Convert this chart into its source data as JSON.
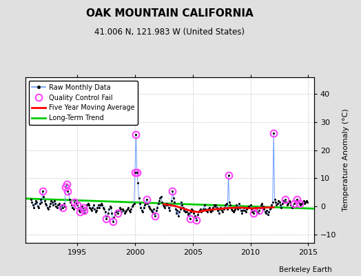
{
  "title": "OAK MOUNTAIN CALIFORNIA",
  "subtitle": "41.006 N, 121.983 W (United States)",
  "ylabel": "Temperature Anomaly (°C)",
  "watermark": "Berkeley Earth",
  "xlim": [
    1990.5,
    2015.5
  ],
  "ylim": [
    -13,
    46
  ],
  "yticks": [
    -10,
    0,
    10,
    20,
    30,
    40
  ],
  "xticks": [
    1995,
    2000,
    2005,
    2010,
    2015
  ],
  "bg_color": "#e0e0e0",
  "plot_bg_color": "#ffffff",
  "raw_color": "#6699ff",
  "dot_color": "#000000",
  "qc_color": "#ff44ff",
  "moving_avg_color": "#ff0000",
  "trend_color": "#00cc00",
  "raw_data": [
    [
      1991.0,
      2.5
    ],
    [
      1991.083,
      1.5
    ],
    [
      1991.167,
      0.5
    ],
    [
      1991.25,
      -0.5
    ],
    [
      1991.333,
      1.0
    ],
    [
      1991.417,
      2.0
    ],
    [
      1991.5,
      1.5
    ],
    [
      1991.583,
      0.0
    ],
    [
      1991.667,
      -0.5
    ],
    [
      1991.75,
      1.0
    ],
    [
      1991.833,
      2.5
    ],
    [
      1991.917,
      1.5
    ],
    [
      1992.0,
      5.5
    ],
    [
      1992.083,
      3.5
    ],
    [
      1992.167,
      2.0
    ],
    [
      1992.25,
      1.0
    ],
    [
      1992.333,
      0.5
    ],
    [
      1992.417,
      -0.5
    ],
    [
      1992.5,
      -1.0
    ],
    [
      1992.583,
      0.0
    ],
    [
      1992.667,
      1.0
    ],
    [
      1992.75,
      2.0
    ],
    [
      1992.833,
      1.5
    ],
    [
      1992.917,
      0.5
    ],
    [
      1993.0,
      2.0
    ],
    [
      1993.083,
      1.0
    ],
    [
      1993.167,
      0.0
    ],
    [
      1993.25,
      -0.5
    ],
    [
      1993.333,
      0.5
    ],
    [
      1993.417,
      1.0
    ],
    [
      1993.5,
      0.0
    ],
    [
      1993.583,
      -1.0
    ],
    [
      1993.667,
      0.5
    ],
    [
      1993.75,
      -0.5
    ],
    [
      1993.833,
      1.0
    ],
    [
      1993.917,
      0.0
    ],
    [
      1994.0,
      7.0
    ],
    [
      1994.083,
      8.0
    ],
    [
      1994.167,
      5.5
    ],
    [
      1994.25,
      4.5
    ],
    [
      1994.333,
      2.5
    ],
    [
      1994.417,
      1.5
    ],
    [
      1994.5,
      0.5
    ],
    [
      1994.583,
      -0.5
    ],
    [
      1994.667,
      -1.0
    ],
    [
      1994.75,
      1.5
    ],
    [
      1994.833,
      2.5
    ],
    [
      1994.917,
      1.0
    ],
    [
      1995.0,
      0.5
    ],
    [
      1995.083,
      -0.5
    ],
    [
      1995.167,
      -1.5
    ],
    [
      1995.25,
      -2.0
    ],
    [
      1995.333,
      -1.0
    ],
    [
      1995.417,
      0.0
    ],
    [
      1995.5,
      -0.5
    ],
    [
      1995.583,
      -1.5
    ],
    [
      1995.667,
      -2.5
    ],
    [
      1995.75,
      -1.0
    ],
    [
      1995.833,
      0.5
    ],
    [
      1995.917,
      1.0
    ],
    [
      1996.0,
      0.5
    ],
    [
      1996.083,
      -0.5
    ],
    [
      1996.167,
      -1.0
    ],
    [
      1996.25,
      -1.5
    ],
    [
      1996.333,
      -0.5
    ],
    [
      1996.417,
      0.5
    ],
    [
      1996.5,
      -1.0
    ],
    [
      1996.583,
      -2.0
    ],
    [
      1996.667,
      -1.5
    ],
    [
      1996.75,
      -0.5
    ],
    [
      1996.833,
      0.5
    ],
    [
      1996.917,
      -0.5
    ],
    [
      1997.0,
      0.5
    ],
    [
      1997.083,
      1.0
    ],
    [
      1997.167,
      0.5
    ],
    [
      1997.25,
      -0.5
    ],
    [
      1997.333,
      -1.0
    ],
    [
      1997.417,
      -2.0
    ],
    [
      1997.5,
      -4.5
    ],
    [
      1997.583,
      -3.5
    ],
    [
      1997.667,
      -2.5
    ],
    [
      1997.75,
      -1.0
    ],
    [
      1997.833,
      0.0
    ],
    [
      1997.917,
      -0.5
    ],
    [
      1998.0,
      -2.5
    ],
    [
      1998.083,
      -5.5
    ],
    [
      1998.167,
      -4.0
    ],
    [
      1998.25,
      -3.0
    ],
    [
      1998.333,
      -2.0
    ],
    [
      1998.417,
      -1.5
    ],
    [
      1998.5,
      -2.5
    ],
    [
      1998.583,
      -1.5
    ],
    [
      1998.667,
      -0.5
    ],
    [
      1998.75,
      -1.0
    ],
    [
      1998.833,
      -2.0
    ],
    [
      1998.917,
      -1.0
    ],
    [
      1999.0,
      -1.5
    ],
    [
      1999.083,
      -2.5
    ],
    [
      1999.167,
      -2.0
    ],
    [
      1999.25,
      -1.5
    ],
    [
      1999.333,
      -1.0
    ],
    [
      1999.417,
      -0.5
    ],
    [
      1999.5,
      -1.5
    ],
    [
      1999.583,
      -2.0
    ],
    [
      1999.667,
      -1.0
    ],
    [
      1999.75,
      0.0
    ],
    [
      1999.833,
      0.5
    ],
    [
      1999.917,
      1.0
    ],
    [
      2000.0,
      12.0
    ],
    [
      2000.083,
      25.5
    ],
    [
      2000.167,
      12.0
    ],
    [
      2000.25,
      8.5
    ],
    [
      2000.333,
      3.0
    ],
    [
      2000.417,
      1.0
    ],
    [
      2000.5,
      -0.5
    ],
    [
      2000.583,
      -1.5
    ],
    [
      2000.667,
      -2.0
    ],
    [
      2000.75,
      -0.5
    ],
    [
      2000.833,
      0.5
    ],
    [
      2000.917,
      1.0
    ],
    [
      2001.0,
      2.5
    ],
    [
      2001.083,
      1.0
    ],
    [
      2001.167,
      0.0
    ],
    [
      2001.25,
      -0.5
    ],
    [
      2001.333,
      -1.0
    ],
    [
      2001.417,
      -1.5
    ],
    [
      2001.5,
      -2.0
    ],
    [
      2001.583,
      -1.0
    ],
    [
      2001.667,
      -2.5
    ],
    [
      2001.75,
      -3.5
    ],
    [
      2001.833,
      -1.5
    ],
    [
      2001.917,
      -0.5
    ],
    [
      2002.0,
      1.0
    ],
    [
      2002.083,
      2.0
    ],
    [
      2002.167,
      3.0
    ],
    [
      2002.25,
      3.5
    ],
    [
      2002.333,
      1.5
    ],
    [
      2002.417,
      0.5
    ],
    [
      2002.5,
      0.0
    ],
    [
      2002.583,
      -0.5
    ],
    [
      2002.667,
      0.5
    ],
    [
      2002.75,
      1.0
    ],
    [
      2002.833,
      0.5
    ],
    [
      2002.917,
      -0.5
    ],
    [
      2003.0,
      -1.5
    ],
    [
      2003.083,
      0.5
    ],
    [
      2003.167,
      2.0
    ],
    [
      2003.25,
      5.5
    ],
    [
      2003.333,
      3.0
    ],
    [
      2003.417,
      1.5
    ],
    [
      2003.5,
      -1.0
    ],
    [
      2003.583,
      -2.5
    ],
    [
      2003.667,
      -1.5
    ],
    [
      2003.75,
      -3.5
    ],
    [
      2003.833,
      -2.0
    ],
    [
      2003.917,
      -1.0
    ],
    [
      2004.0,
      1.5
    ],
    [
      2004.083,
      0.5
    ],
    [
      2004.167,
      -0.5
    ],
    [
      2004.25,
      -1.5
    ],
    [
      2004.333,
      -2.0
    ],
    [
      2004.417,
      -1.0
    ],
    [
      2004.5,
      -2.0
    ],
    [
      2004.583,
      -3.0
    ],
    [
      2004.667,
      -2.5
    ],
    [
      2004.75,
      -4.5
    ],
    [
      2004.833,
      -2.0
    ],
    [
      2004.917,
      -1.0
    ],
    [
      2005.0,
      -1.5
    ],
    [
      2005.083,
      -2.5
    ],
    [
      2005.167,
      -3.5
    ],
    [
      2005.25,
      -4.0
    ],
    [
      2005.333,
      -5.0
    ],
    [
      2005.417,
      -3.0
    ],
    [
      2005.5,
      -2.0
    ],
    [
      2005.583,
      -1.5
    ],
    [
      2005.667,
      -1.0
    ],
    [
      2005.75,
      -2.0
    ],
    [
      2005.833,
      -1.5
    ],
    [
      2005.917,
      -1.0
    ],
    [
      2006.0,
      0.5
    ],
    [
      2006.083,
      -1.0
    ],
    [
      2006.167,
      -1.5
    ],
    [
      2006.25,
      -2.0
    ],
    [
      2006.333,
      -1.0
    ],
    [
      2006.417,
      -0.5
    ],
    [
      2006.5,
      -1.5
    ],
    [
      2006.583,
      -2.0
    ],
    [
      2006.667,
      -1.5
    ],
    [
      2006.75,
      -0.5
    ],
    [
      2006.833,
      0.5
    ],
    [
      2006.917,
      0.0
    ],
    [
      2007.0,
      0.5
    ],
    [
      2007.083,
      -0.5
    ],
    [
      2007.167,
      -1.5
    ],
    [
      2007.25,
      -2.5
    ],
    [
      2007.333,
      -1.0
    ],
    [
      2007.417,
      -0.5
    ],
    [
      2007.5,
      -1.5
    ],
    [
      2007.583,
      -2.0
    ],
    [
      2007.667,
      -1.0
    ],
    [
      2007.75,
      -0.5
    ],
    [
      2007.833,
      0.5
    ],
    [
      2007.917,
      1.0
    ],
    [
      2008.0,
      -1.0
    ],
    [
      2008.083,
      11.0
    ],
    [
      2008.167,
      1.5
    ],
    [
      2008.25,
      0.5
    ],
    [
      2008.333,
      -1.0
    ],
    [
      2008.417,
      -1.5
    ],
    [
      2008.5,
      -2.0
    ],
    [
      2008.583,
      -1.5
    ],
    [
      2008.667,
      -1.0
    ],
    [
      2008.75,
      0.5
    ],
    [
      2008.833,
      -0.5
    ],
    [
      2008.917,
      -1.0
    ],
    [
      2009.0,
      1.0
    ],
    [
      2009.083,
      -0.5
    ],
    [
      2009.167,
      -1.5
    ],
    [
      2009.25,
      -2.5
    ],
    [
      2009.333,
      -1.5
    ],
    [
      2009.417,
      -0.5
    ],
    [
      2009.5,
      -1.5
    ],
    [
      2009.583,
      -2.0
    ],
    [
      2009.667,
      -1.0
    ],
    [
      2009.75,
      -0.5
    ],
    [
      2009.833,
      0.0
    ],
    [
      2009.917,
      -0.5
    ],
    [
      2010.0,
      0.5
    ],
    [
      2010.083,
      -1.0
    ],
    [
      2010.167,
      -2.0
    ],
    [
      2010.25,
      -2.5
    ],
    [
      2010.333,
      -1.5
    ],
    [
      2010.417,
      -0.5
    ],
    [
      2010.5,
      -1.0
    ],
    [
      2010.583,
      -2.0
    ],
    [
      2010.667,
      -2.5
    ],
    [
      2010.75,
      -1.5
    ],
    [
      2010.833,
      -0.5
    ],
    [
      2010.917,
      0.5
    ],
    [
      2011.0,
      1.0
    ],
    [
      2011.083,
      0.0
    ],
    [
      2011.167,
      -1.0
    ],
    [
      2011.25,
      -2.0
    ],
    [
      2011.333,
      -2.5
    ],
    [
      2011.417,
      -1.5
    ],
    [
      2011.5,
      -3.0
    ],
    [
      2011.583,
      -2.0
    ],
    [
      2011.667,
      -1.0
    ],
    [
      2011.75,
      -0.5
    ],
    [
      2011.833,
      0.5
    ],
    [
      2011.917,
      1.5
    ],
    [
      2012.0,
      26.0
    ],
    [
      2012.083,
      2.5
    ],
    [
      2012.167,
      1.5
    ],
    [
      2012.25,
      0.5
    ],
    [
      2012.333,
      1.0
    ],
    [
      2012.417,
      2.0
    ],
    [
      2012.5,
      1.5
    ],
    [
      2012.583,
      0.5
    ],
    [
      2012.667,
      -0.5
    ],
    [
      2012.75,
      1.0
    ],
    [
      2012.833,
      2.0
    ],
    [
      2012.917,
      1.5
    ],
    [
      2013.0,
      2.5
    ],
    [
      2013.083,
      1.5
    ],
    [
      2013.167,
      0.5
    ],
    [
      2013.25,
      1.0
    ],
    [
      2013.333,
      2.0
    ],
    [
      2013.417,
      1.5
    ],
    [
      2013.5,
      0.5
    ],
    [
      2013.583,
      -0.5
    ],
    [
      2013.667,
      0.0
    ],
    [
      2013.75,
      1.0
    ],
    [
      2013.833,
      2.0
    ],
    [
      2013.917,
      1.5
    ],
    [
      2014.0,
      2.5
    ],
    [
      2014.083,
      2.0
    ],
    [
      2014.167,
      1.5
    ],
    [
      2014.25,
      1.0
    ],
    [
      2014.333,
      0.5
    ],
    [
      2014.417,
      1.0
    ],
    [
      2014.5,
      1.5
    ],
    [
      2014.583,
      2.0
    ],
    [
      2014.667,
      1.0
    ],
    [
      2014.75,
      1.5
    ],
    [
      2014.833,
      2.0
    ],
    [
      2014.917,
      1.5
    ]
  ],
  "qc_fail_points": [
    [
      1992.0,
      5.5
    ],
    [
      1993.75,
      -0.5
    ],
    [
      1994.0,
      7.0
    ],
    [
      1994.083,
      8.0
    ],
    [
      1994.167,
      5.5
    ],
    [
      1994.75,
      1.5
    ],
    [
      1995.0,
      0.5
    ],
    [
      1995.5,
      -0.5
    ],
    [
      1995.25,
      -2.0
    ],
    [
      1995.583,
      -1.5
    ],
    [
      1997.5,
      -4.5
    ],
    [
      1998.083,
      -5.5
    ],
    [
      1998.5,
      -2.5
    ],
    [
      2000.0,
      12.0
    ],
    [
      2000.083,
      25.5
    ],
    [
      2000.167,
      12.0
    ],
    [
      2001.0,
      2.5
    ],
    [
      2001.75,
      -3.5
    ],
    [
      2003.25,
      5.5
    ],
    [
      2004.75,
      -4.5
    ],
    [
      2005.333,
      -5.0
    ],
    [
      2008.083,
      11.0
    ],
    [
      2010.25,
      -2.5
    ],
    [
      2010.75,
      -1.5
    ],
    [
      2012.0,
      26.0
    ],
    [
      2013.0,
      2.5
    ],
    [
      2013.75,
      1.0
    ],
    [
      2014.0,
      2.5
    ],
    [
      2014.25,
      1.0
    ]
  ],
  "moving_avg": [
    [
      2002.5,
      0.8
    ],
    [
      2003.0,
      0.5
    ],
    [
      2003.5,
      0.1
    ],
    [
      2004.0,
      -0.5
    ],
    [
      2004.5,
      -1.2
    ],
    [
      2005.0,
      -1.8
    ],
    [
      2005.5,
      -2.0
    ],
    [
      2006.0,
      -1.5
    ],
    [
      2006.5,
      -1.2
    ],
    [
      2007.0,
      -1.0
    ],
    [
      2007.5,
      -0.8
    ],
    [
      2008.0,
      -0.6
    ],
    [
      2008.5,
      -0.5
    ],
    [
      2009.0,
      -0.4
    ],
    [
      2009.5,
      -0.5
    ],
    [
      2010.0,
      -0.7
    ],
    [
      2010.5,
      -0.6
    ],
    [
      2011.0,
      -0.5
    ],
    [
      2011.5,
      -0.4
    ],
    [
      2012.0,
      -0.3
    ]
  ],
  "trend_x": [
    1990.5,
    2015.5
  ],
  "trend_y": [
    2.8,
    -0.8
  ]
}
